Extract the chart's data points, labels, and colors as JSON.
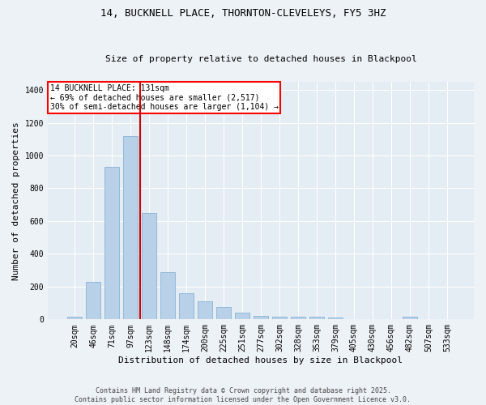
{
  "title_line1": "14, BUCKNELL PLACE, THORNTON-CLEVELEYS, FY5 3HZ",
  "title_line2": "Size of property relative to detached houses in Blackpool",
  "xlabel": "Distribution of detached houses by size in Blackpool",
  "ylabel": "Number of detached properties",
  "bar_labels": [
    "20sqm",
    "46sqm",
    "71sqm",
    "97sqm",
    "123sqm",
    "148sqm",
    "174sqm",
    "200sqm",
    "225sqm",
    "251sqm",
    "277sqm",
    "302sqm",
    "328sqm",
    "353sqm",
    "379sqm",
    "405sqm",
    "430sqm",
    "456sqm",
    "482sqm",
    "507sqm",
    "533sqm"
  ],
  "bar_values": [
    15,
    230,
    930,
    1120,
    650,
    290,
    158,
    108,
    78,
    42,
    22,
    18,
    15,
    18,
    10,
    0,
    0,
    0,
    15,
    0,
    0
  ],
  "bar_color": "#b8d0e8",
  "bar_edgecolor": "#7aabcf",
  "vline_x": 3.5,
  "vline_color": "#cc0000",
  "annotation_title": "14 BUCKNELL PLACE: 131sqm",
  "annotation_line2": "← 69% of detached houses are smaller (2,517)",
  "annotation_line3": "30% of semi-detached houses are larger (1,104) →",
  "ylim": [
    0,
    1450
  ],
  "yticks": [
    0,
    200,
    400,
    600,
    800,
    1000,
    1200,
    1400
  ],
  "footer_line1": "Contains HM Land Registry data © Crown copyright and database right 2025.",
  "footer_line2": "Contains public sector information licensed under the Open Government Licence v3.0.",
  "bg_color": "#edf2f7",
  "plot_bg_color": "#e4ecf4",
  "grid_color": "#ffffff",
  "title_fontsize": 9,
  "subtitle_fontsize": 8,
  "tick_fontsize": 7,
  "ylabel_fontsize": 8,
  "xlabel_fontsize": 8,
  "ann_fontsize": 7,
  "footer_fontsize": 6
}
